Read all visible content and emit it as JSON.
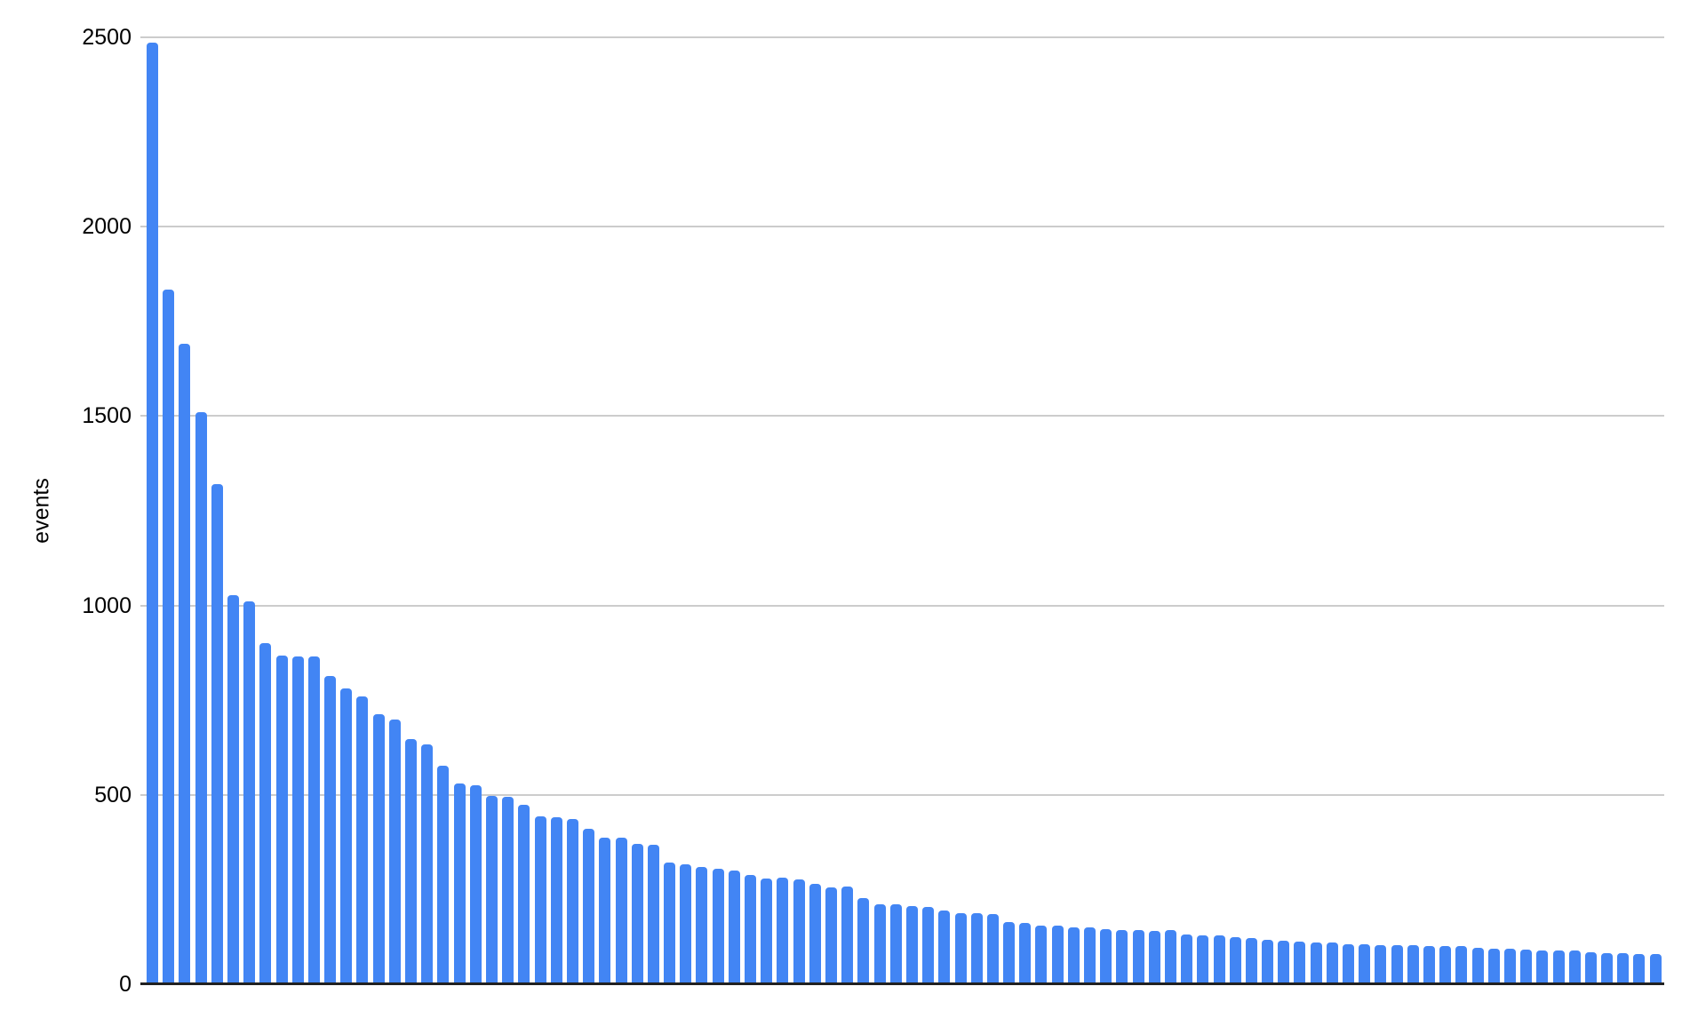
{
  "chart_data": {
    "type": "bar",
    "title": "",
    "xlabel": "",
    "ylabel": "events",
    "ylim": [
      0,
      2500
    ],
    "y_ticks": [
      0,
      500,
      1000,
      1500,
      2000,
      2500
    ],
    "grid": true,
    "legend": "none",
    "x_tick_labels_visible": false,
    "bar_color": "#4285f4",
    "gridline_color": "#cccccc",
    "axis_line_color": "#212121",
    "text_color": "#000000",
    "background_color": "#ffffff",
    "num_bars": 94,
    "values": [
      2485,
      1835,
      1690,
      1510,
      1320,
      1027,
      1010,
      900,
      868,
      866,
      865,
      814,
      781,
      759,
      713,
      698,
      648,
      634,
      576,
      530,
      525,
      498,
      494,
      473,
      443,
      441,
      436,
      410,
      386,
      388,
      371,
      368,
      321,
      316,
      309,
      304,
      300,
      288,
      279,
      281,
      276,
      266,
      256,
      258,
      228,
      211,
      210,
      207,
      205,
      195,
      188,
      187,
      186,
      164,
      163,
      154,
      154,
      150,
      149,
      145,
      144,
      143,
      140,
      142,
      131,
      130,
      128,
      124,
      122,
      117,
      115,
      113,
      111,
      110,
      105,
      105,
      104,
      103,
      103,
      102,
      101,
      100,
      96,
      95,
      93,
      92,
      89,
      88,
      88,
      85,
      82,
      81,
      80,
      80
    ]
  }
}
